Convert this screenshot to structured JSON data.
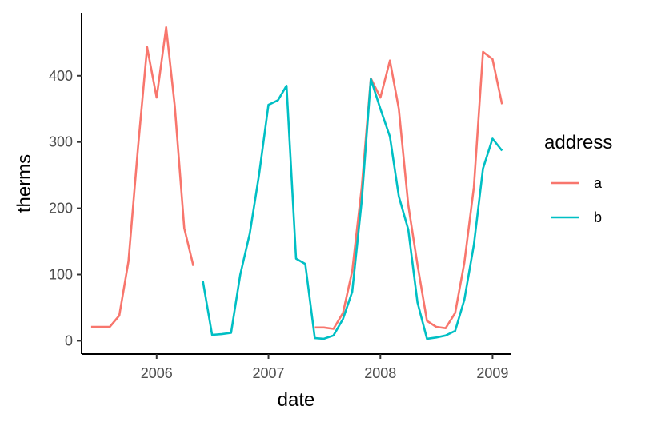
{
  "chart_data": {
    "type": "line",
    "xlabel": "date",
    "ylabel": "therms",
    "x_type": "date",
    "xlim": [
      "2005-05-01",
      "2009-03-01"
    ],
    "ylim": [
      -20,
      495
    ],
    "x_ticks": [
      {
        "date": "2006-01-01",
        "label": "2006"
      },
      {
        "date": "2007-01-01",
        "label": "2007"
      },
      {
        "date": "2008-01-01",
        "label": "2008"
      },
      {
        "date": "2009-01-01",
        "label": "2009"
      }
    ],
    "y_ticks": [
      {
        "value": 0,
        "label": "0"
      },
      {
        "value": 100,
        "label": "100"
      },
      {
        "value": 200,
        "label": "200"
      },
      {
        "value": 300,
        "label": "300"
      },
      {
        "value": 400,
        "label": "400"
      }
    ],
    "grid": false,
    "legend": {
      "title": "address",
      "position": "right"
    },
    "series": [
      {
        "name": "a",
        "color": "#F8766D",
        "segments": [
          [
            {
              "x": "2005-06-01",
              "y": 21
            },
            {
              "x": "2005-07-01",
              "y": 21
            },
            {
              "x": "2005-08-01",
              "y": 21
            },
            {
              "x": "2005-09-01",
              "y": 38
            },
            {
              "x": "2005-10-01",
              "y": 120
            },
            {
              "x": "2005-11-01",
              "y": 290
            },
            {
              "x": "2005-12-01",
              "y": 443
            },
            {
              "x": "2006-01-01",
              "y": 367
            },
            {
              "x": "2006-02-01",
              "y": 473
            },
            {
              "x": "2006-03-01",
              "y": 355
            },
            {
              "x": "2006-04-01",
              "y": 170
            },
            {
              "x": "2006-05-01",
              "y": 113
            }
          ],
          [
            {
              "x": "2007-06-01",
              "y": 20
            },
            {
              "x": "2007-07-01",
              "y": 20
            },
            {
              "x": "2007-08-01",
              "y": 18
            },
            {
              "x": "2007-09-01",
              "y": 42
            },
            {
              "x": "2007-10-01",
              "y": 105
            },
            {
              "x": "2007-11-01",
              "y": 230
            },
            {
              "x": "2007-12-01",
              "y": 396
            },
            {
              "x": "2008-01-01",
              "y": 367
            },
            {
              "x": "2008-02-01",
              "y": 423
            },
            {
              "x": "2008-03-01",
              "y": 350
            },
            {
              "x": "2008-04-01",
              "y": 205
            },
            {
              "x": "2008-05-01",
              "y": 115
            },
            {
              "x": "2008-06-01",
              "y": 30
            },
            {
              "x": "2008-07-01",
              "y": 21
            },
            {
              "x": "2008-08-01",
              "y": 19
            },
            {
              "x": "2008-09-01",
              "y": 42
            },
            {
              "x": "2008-10-01",
              "y": 118
            },
            {
              "x": "2008-11-01",
              "y": 232
            },
            {
              "x": "2008-12-01",
              "y": 436
            },
            {
              "x": "2009-01-01",
              "y": 425
            },
            {
              "x": "2009-02-01",
              "y": 357
            }
          ]
        ]
      },
      {
        "name": "b",
        "color": "#00BFC4",
        "segments": [
          [
            {
              "x": "2006-06-01",
              "y": 90
            },
            {
              "x": "2006-07-01",
              "y": 9
            },
            {
              "x": "2006-08-01",
              "y": 10
            },
            {
              "x": "2006-09-01",
              "y": 12
            },
            {
              "x": "2006-10-01",
              "y": 100
            },
            {
              "x": "2006-11-01",
              "y": 162
            },
            {
              "x": "2006-12-01",
              "y": 250
            },
            {
              "x": "2007-01-01",
              "y": 356
            },
            {
              "x": "2007-02-01",
              "y": 363
            },
            {
              "x": "2007-03-01",
              "y": 385
            },
            {
              "x": "2007-04-01",
              "y": 124
            },
            {
              "x": "2007-05-01",
              "y": 116
            },
            {
              "x": "2007-06-01",
              "y": 4
            },
            {
              "x": "2007-07-01",
              "y": 3
            },
            {
              "x": "2007-08-01",
              "y": 8
            },
            {
              "x": "2007-09-01",
              "y": 33
            },
            {
              "x": "2007-10-01",
              "y": 74
            },
            {
              "x": "2007-11-01",
              "y": 210
            },
            {
              "x": "2007-12-01",
              "y": 395
            },
            {
              "x": "2008-01-01",
              "y": 350
            },
            {
              "x": "2008-02-01",
              "y": 308
            },
            {
              "x": "2008-03-01",
              "y": 218
            },
            {
              "x": "2008-04-01",
              "y": 168
            },
            {
              "x": "2008-05-01",
              "y": 58
            },
            {
              "x": "2008-06-01",
              "y": 3
            },
            {
              "x": "2008-07-01",
              "y": 5
            },
            {
              "x": "2008-08-01",
              "y": 8
            },
            {
              "x": "2008-09-01",
              "y": 15
            },
            {
              "x": "2008-10-01",
              "y": 62
            },
            {
              "x": "2008-11-01",
              "y": 145
            },
            {
              "x": "2008-12-01",
              "y": 260
            },
            {
              "x": "2009-01-01",
              "y": 305
            },
            {
              "x": "2009-02-01",
              "y": 287
            }
          ]
        ]
      }
    ]
  }
}
